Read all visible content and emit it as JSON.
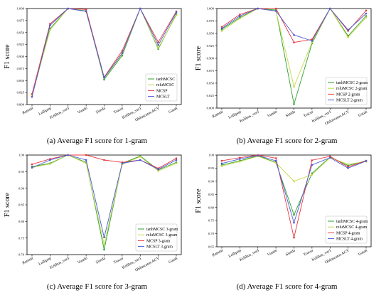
{
  "colors": {
    "tanh": "#2ca02c",
    "relu": "#c8d84a",
    "mcsp": "#e8383d",
    "mcslt": "#4a5ad8"
  },
  "chart_data": [
    {
      "type": "line",
      "caption": "(a) Average F1 score for 1-gram",
      "ylabel": "F1 score",
      "ylim": [
        0.8,
        1.0
      ],
      "yticks": [
        "0.800",
        "0.825",
        "0.850",
        "0.875",
        "0.900",
        "0.925",
        "0.950",
        "0.975",
        "1.000"
      ],
      "yticks_values": [
        0.8,
        0.825,
        0.85,
        0.875,
        0.9,
        0.925,
        0.95,
        0.975,
        1.0
      ],
      "categories": [
        "Ramnit",
        "Lollipop",
        "Kelihos_ver3",
        "Vundo",
        "Simda",
        "Tracur",
        "Kelihos_ver1",
        "Obfuscator.ACY",
        "Gatak"
      ],
      "legend_position": "lower-right",
      "series": [
        {
          "name": "tanhMCSC",
          "color_key": "tanh",
          "values": [
            0.818,
            0.958,
            1.0,
            0.995,
            0.852,
            0.902,
            1.0,
            0.916,
            0.988
          ]
        },
        {
          "name": "reluMCSC",
          "color_key": "relu",
          "values": [
            0.818,
            0.955,
            1.0,
            0.994,
            0.855,
            0.905,
            1.0,
            0.918,
            0.986
          ]
        },
        {
          "name": "MCSP",
          "color_key": "mcsp",
          "values": [
            0.822,
            0.968,
            1.0,
            0.998,
            0.857,
            0.912,
            1.0,
            0.93,
            0.994
          ]
        },
        {
          "name": "MCSLT",
          "color_key": "mcslt",
          "values": [
            0.816,
            0.965,
            1.0,
            0.994,
            0.856,
            0.907,
            1.0,
            0.924,
            0.992
          ]
        }
      ]
    },
    {
      "type": "line",
      "caption": "(b) Average F1 score for 2-gram",
      "ylabel": "F1 score",
      "ylim": [
        0.8,
        1.0
      ],
      "yticks": [
        "0.800",
        "0.825",
        "0.850",
        "0.875",
        "0.900",
        "0.925",
        "0.950",
        "0.975",
        "1.000"
      ],
      "yticks_values": [
        0.8,
        0.825,
        0.85,
        0.875,
        0.9,
        0.925,
        0.95,
        0.975,
        1.0
      ],
      "categories": [
        "Ramnit",
        "Lollipop",
        "Kelihos_ver3",
        "Vundo",
        "Simda",
        "Tracur",
        "Kelihos_ver1",
        "Obfuscator.ACY",
        "Gatak"
      ],
      "legend_position": "lower-right",
      "series": [
        {
          "name": "tanhMCSC 2-gram",
          "color_key": "tanh",
          "values": [
            0.958,
            0.982,
            1.0,
            0.997,
            0.808,
            0.93,
            1.0,
            0.945,
            0.985
          ]
        },
        {
          "name": "reluMCSC 2-gram",
          "color_key": "relu",
          "values": [
            0.955,
            0.98,
            1.0,
            0.995,
            0.843,
            0.932,
            1.0,
            0.942,
            0.982
          ]
        },
        {
          "name": "MCSP 2-gram",
          "color_key": "mcsp",
          "values": [
            0.963,
            0.988,
            1.0,
            1.0,
            0.932,
            0.938,
            1.0,
            0.955,
            0.996
          ]
        },
        {
          "name": "MCSLT 2-gram",
          "color_key": "mcslt",
          "values": [
            0.96,
            0.985,
            1.0,
            0.995,
            0.947,
            0.935,
            1.0,
            0.957,
            0.99
          ]
        }
      ]
    },
    {
      "type": "line",
      "caption": "(c) Average F1 score for 3-gram",
      "ylabel": "F1 score",
      "ylim": [
        0.7,
        1.0
      ],
      "yticks": [
        "0.70",
        "0.75",
        "0.80",
        "0.85",
        "0.90",
        "0.95",
        "1.00"
      ],
      "yticks_values": [
        0.7,
        0.75,
        0.8,
        0.85,
        0.9,
        0.95,
        1.0
      ],
      "categories": [
        "Ramnit",
        "Lollipop",
        "Kelihos_ver3",
        "Vundo",
        "Simda",
        "Tracur",
        "Kelihos_ver1",
        "Obfuscator.ACY",
        "Gatak"
      ],
      "legend_position": "lower-right",
      "series": [
        {
          "name": "tanhMCSC 3-gram",
          "color_key": "tanh",
          "values": [
            0.965,
            0.975,
            1.0,
            0.978,
            0.715,
            0.975,
            0.997,
            0.955,
            0.978
          ]
        },
        {
          "name": "reluMCSC 3-gram",
          "color_key": "relu",
          "values": [
            0.962,
            0.973,
            1.0,
            0.975,
            0.73,
            0.972,
            0.995,
            0.952,
            0.975
          ]
        },
        {
          "name": "MCSP 3-gram",
          "color_key": "mcsp",
          "values": [
            0.972,
            0.988,
            1.0,
            1.0,
            0.985,
            0.978,
            0.985,
            0.96,
            0.99
          ]
        },
        {
          "name": "MCSLT 3-gram",
          "color_key": "mcslt",
          "values": [
            0.962,
            0.985,
            1.0,
            0.985,
            0.752,
            0.975,
            0.985,
            0.957,
            0.985
          ]
        }
      ]
    },
    {
      "type": "line",
      "caption": "(d) Average F1 score for 4-gram",
      "ylabel": "F1 score",
      "ylim": [
        0.65,
        1.0
      ],
      "yticks": [
        "0.65",
        "0.70",
        "0.75",
        "0.80",
        "0.85",
        "0.90",
        "0.95",
        "1.00"
      ],
      "yticks_values": [
        0.65,
        0.7,
        0.75,
        0.8,
        0.85,
        0.9,
        0.95,
        1.0
      ],
      "categories": [
        "Ramnit",
        "Lollipop",
        "Kelihos_ver3",
        "Vundo",
        "Simda",
        "Tracur",
        "Kelihos_ver1",
        "Obfuscator.ACY",
        "Gatak"
      ],
      "legend_position": "lower-right",
      "series": [
        {
          "name": "tanhMCSC 4-gram",
          "color_key": "tanh",
          "values": [
            0.962,
            0.978,
            0.997,
            0.972,
            0.772,
            0.93,
            0.992,
            0.96,
            0.978
          ]
        },
        {
          "name": "reluMCSC 4-gram",
          "color_key": "relu",
          "values": [
            0.958,
            0.975,
            0.995,
            0.97,
            0.9,
            0.925,
            0.99,
            0.965,
            0.975
          ]
        },
        {
          "name": "MCSP 4-gram",
          "color_key": "mcsp",
          "values": [
            0.978,
            0.99,
            1.0,
            0.988,
            0.685,
            0.98,
            0.995,
            0.955,
            0.978
          ]
        },
        {
          "name": "MCSLT 4-gram",
          "color_key": "mcslt",
          "values": [
            0.968,
            0.985,
            0.998,
            0.978,
            0.742,
            0.962,
            0.99,
            0.95,
            0.977
          ]
        }
      ]
    }
  ]
}
